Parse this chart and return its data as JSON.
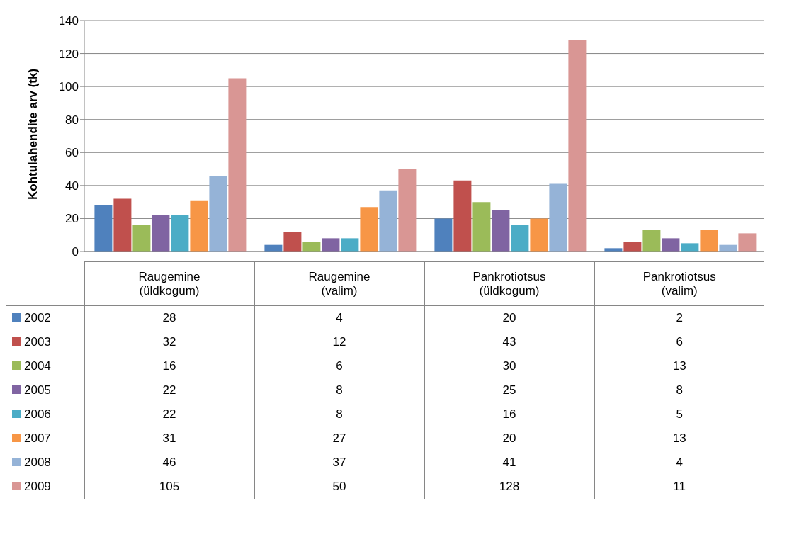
{
  "chart_data": {
    "type": "bar",
    "ylabel": "Kohtulahendite arv (tk)",
    "categories": [
      "Raugemine (üldkogum)",
      "Raugemine (valim)",
      "Pankrotiotsus (üldkogum)",
      "Pankrotiotsus (valim)"
    ],
    "series": [
      {
        "name": "2002",
        "color": "#4f81bd",
        "values": [
          28,
          4,
          20,
          2
        ]
      },
      {
        "name": "2003",
        "color": "#c0504d",
        "values": [
          32,
          12,
          43,
          6
        ]
      },
      {
        "name": "2004",
        "color": "#9bbb59",
        "values": [
          16,
          6,
          30,
          13
        ]
      },
      {
        "name": "2005",
        "color": "#8064a2",
        "values": [
          22,
          8,
          25,
          8
        ]
      },
      {
        "name": "2006",
        "color": "#4bacc6",
        "values": [
          22,
          8,
          16,
          5
        ]
      },
      {
        "name": "2007",
        "color": "#f79646",
        "values": [
          31,
          27,
          20,
          13
        ]
      },
      {
        "name": "2008",
        "color": "#95b3d7",
        "values": [
          46,
          37,
          41,
          4
        ]
      },
      {
        "name": "2009",
        "color": "#d99694",
        "values": [
          105,
          50,
          128,
          11
        ]
      }
    ],
    "ylim": [
      0,
      140
    ],
    "yticks": [
      0,
      20,
      40,
      60,
      80,
      100,
      120,
      140
    ],
    "grid": "y",
    "legend": "bottom",
    "data_labels": true
  }
}
